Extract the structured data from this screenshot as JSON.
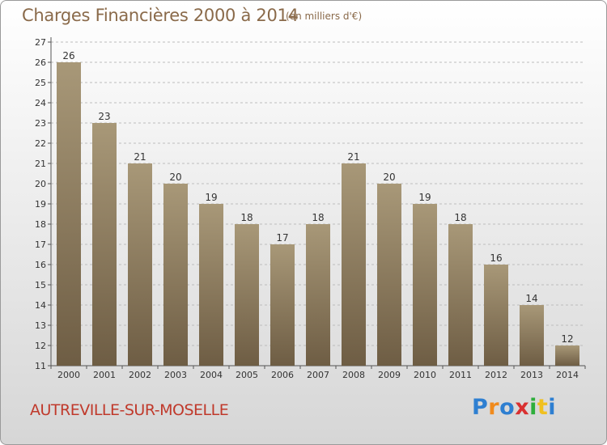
{
  "header": {
    "title": "Charges Financières 2000 à 2014",
    "subtitle": "(en milliers d'€)"
  },
  "footer": {
    "commune": "AUTREVILLE-SUR-MOSELLE",
    "logo": {
      "text": "Proxiti",
      "letter_colors": [
        "#2e7fd1",
        "#f08a1c",
        "#2e7fd1",
        "#d93030",
        "#2eae3c",
        "#f0c020",
        "#2e7fd1"
      ]
    }
  },
  "colors": {
    "bar_top": "#a89878",
    "bar_bottom": "#6e5d44",
    "grid": "#bdbdbd",
    "axis": "#555555",
    "label": "#333333"
  },
  "chart_data": {
    "type": "bar",
    "title": "Charges Financières 2000 à 2014",
    "subtitle": "(en milliers d'€)",
    "categories": [
      "2000",
      "2001",
      "2002",
      "2003",
      "2004",
      "2005",
      "2006",
      "2007",
      "2008",
      "2009",
      "2010",
      "2011",
      "2012",
      "2013",
      "2014"
    ],
    "values": [
      26,
      23,
      21,
      20,
      19,
      18,
      17,
      18,
      21,
      20,
      19,
      18,
      16,
      14,
      12
    ],
    "ylim": [
      11,
      27
    ],
    "yticks": [
      11,
      12,
      13,
      14,
      15,
      16,
      17,
      18,
      19,
      20,
      21,
      22,
      23,
      24,
      25,
      26,
      27
    ],
    "grid": true,
    "data_labels": true
  }
}
